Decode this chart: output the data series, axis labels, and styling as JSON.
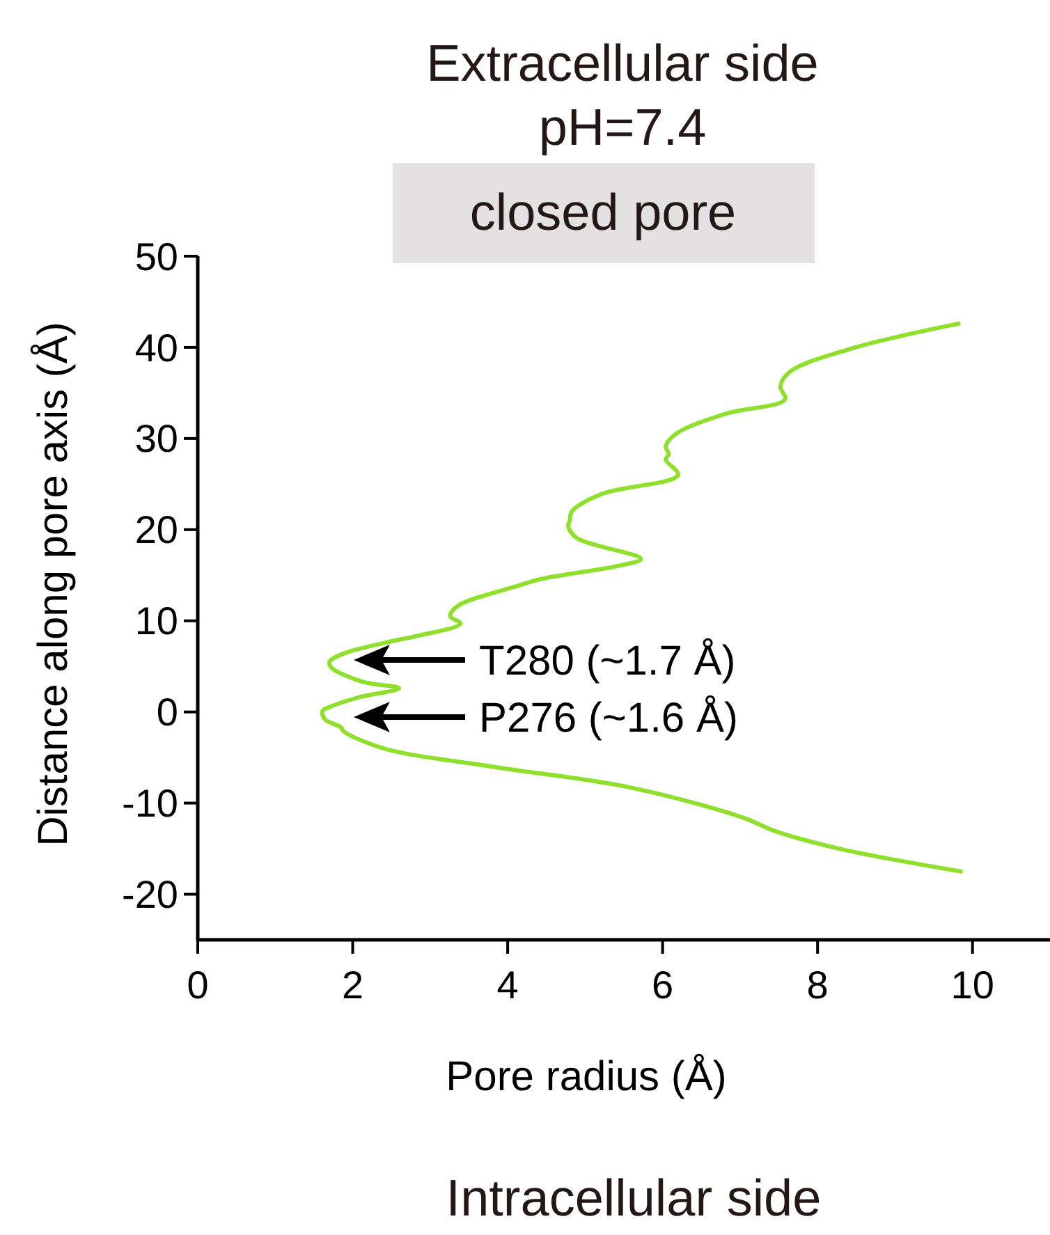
{
  "chart_data": {
    "type": "line",
    "title": "Extracellular side",
    "subtitle": "pH=7.4",
    "xlabel": "Pore radius (Å)",
    "ylabel": "Distance along pore axis (Å)",
    "xlim": [
      0,
      11
    ],
    "xticks": [
      0,
      2,
      4,
      6,
      8,
      10
    ],
    "ylim": [
      -25,
      50
    ],
    "yticks": [
      -20,
      -10,
      0,
      10,
      20,
      30,
      40,
      50
    ],
    "grid": false,
    "marker": "none",
    "line_style": "solid",
    "series": [
      {
        "color": "#8ee02c",
        "x": [
          9.85,
          8.28,
          7.46,
          7.04,
          5.59,
          3.8,
          2.4,
          1.88,
          1.85,
          1.64,
          1.61,
          1.72,
          2.08,
          2.6,
          2.13,
          1.72,
          1.7,
          1.88,
          2.53,
          2.81,
          3.39,
          3.26,
          3.35,
          4.12,
          4.44,
          5.47,
          5.72,
          4.89,
          4.78,
          4.8,
          4.83,
          5.21,
          6.2,
          6.04,
          6.08,
          6.04,
          6.17,
          6.81,
          7.58,
          7.52,
          7.64,
          8.41,
          9.82
        ],
        "values": [
          -17.5,
          -15,
          -13.1,
          -11.6,
          -8.3,
          -6,
          -4,
          -2.1,
          -1.7,
          -0.8,
          0.1,
          0.6,
          1.6,
          2.6,
          3.3,
          4.9,
          5.5,
          6.4,
          7.8,
          8.3,
          9.7,
          10.5,
          11.6,
          13.8,
          14.6,
          16.1,
          16.8,
          19.1,
          20.4,
          20.9,
          22,
          23.9,
          26,
          27.7,
          28.3,
          29.1,
          30.5,
          32.7,
          34.3,
          35.7,
          37.3,
          39.8,
          42.6
        ]
      }
    ],
    "annotations": [
      "closed pore",
      "Intracellular side",
      "T280 (~1.7 Å)",
      "P276 (~1.6 Å)"
    ]
  }
}
